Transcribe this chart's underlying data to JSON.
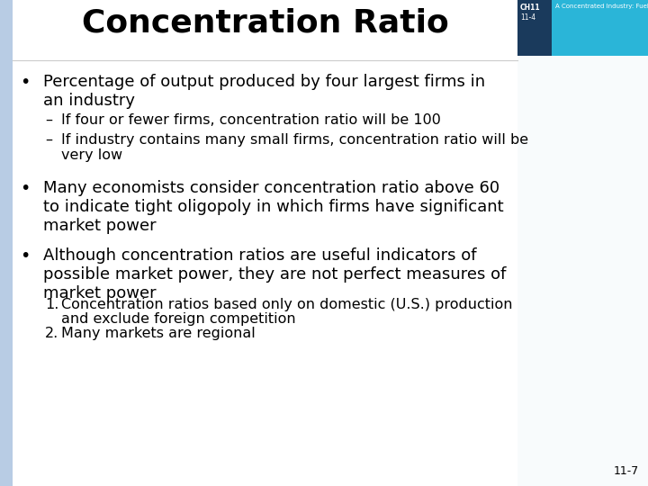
{
  "title": "Concentration Ratio",
  "title_fontsize": 26,
  "title_fontweight": "bold",
  "bg_color": "#f0f4f8",
  "left_bar_color": "#b8cce4",
  "bullet1_main": "Percentage of output produced by four largest firms in\nan industry",
  "bullet1_sub1": "If four or fewer firms, concentration ratio will be 100",
  "bullet1_sub2": "If industry contains many small firms, concentration ratio will be\nvery low",
  "bullet2": "Many economists consider concentration ratio above 60\nto indicate tight oligopoly in which firms have significant\nmarket power",
  "bullet3": "Although concentration ratios are useful indicators of\npossible market power, they are not perfect measures of\nmarket power",
  "numbered1_a": "Concentration ratios based only on domestic (U.S.) production",
  "numbered1_b": "and exclude foreign competition",
  "numbered2": "Many markets are regional",
  "page_number": "11-7",
  "main_font_size": 13.0,
  "sub_font_size": 11.5,
  "text_color": "#000000",
  "corner_teal": "#2ab5d8",
  "corner_dark": "#1a3a5c",
  "corner_text_color": "#ffffff"
}
